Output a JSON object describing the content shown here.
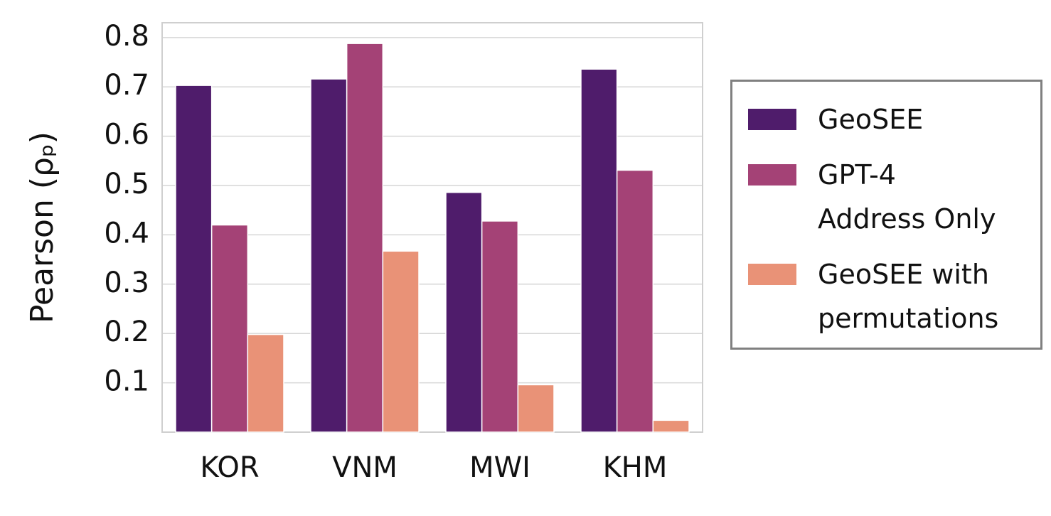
{
  "chart_data": {
    "type": "grouped_bar",
    "y_label": "Pearson (ρₚ)",
    "categories": [
      "KOR",
      "VNM",
      "MWI",
      "KHM"
    ],
    "series": [
      {
        "name": "GeoSEE",
        "color": "#4f1c6b",
        "values": [
          0.703,
          0.716,
          0.486,
          0.736
        ]
      },
      {
        "name": "GPT-4\nAddress Only",
        "color": "#a44276",
        "values": [
          0.42,
          0.788,
          0.428,
          0.531
        ]
      },
      {
        "name": "GeoSEE with permutations",
        "color": "#e99277",
        "values": [
          0.198,
          0.367,
          0.096,
          0.024
        ]
      }
    ],
    "ylim": [
      0,
      0.83
    ],
    "yticks": [
      0.1,
      0.2,
      0.3,
      0.4,
      0.5,
      0.6,
      0.7,
      0.8
    ],
    "grid": true
  }
}
